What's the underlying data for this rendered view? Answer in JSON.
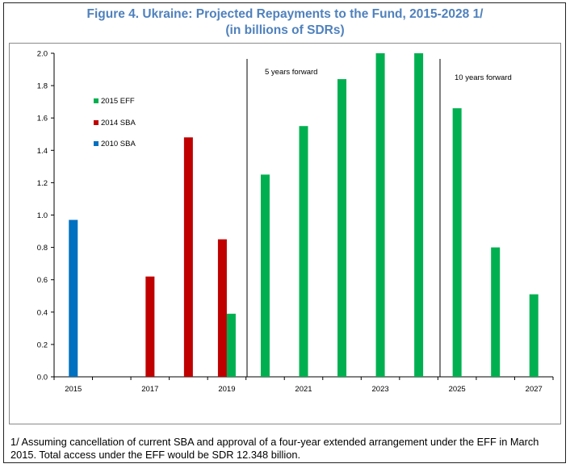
{
  "figure": {
    "title_line1": "Figure 4. Ukraine: Projected Repayments to the Fund, 2015-2028 1/",
    "title_line2": "(in billions of SDRs)"
  },
  "footnote": "1/ Assuming cancellation of current SBA and approval of a four-year extended arrangement under the EFF in March 2015. Total access under the EFF would be SDR 12.348 billion.",
  "colors": {
    "eff": "#00b050",
    "sba2014": "#c00000",
    "sba2010": "#0070c0"
  },
  "chart_data": {
    "type": "bar",
    "categories": [
      "2015",
      "2016",
      "2017",
      "2018",
      "2019",
      "2020",
      "2021",
      "2022",
      "2023",
      "2024",
      "2025",
      "2026",
      "2027"
    ],
    "x_tick_labels": [
      "2015",
      "2017",
      "2019",
      "2021",
      "2023",
      "2025",
      "2027"
    ],
    "ylim": [
      0,
      2.0
    ],
    "y_ticks": [
      "0.0",
      "0.2",
      "0.4",
      "0.6",
      "0.8",
      "1.0",
      "1.2",
      "1.4",
      "1.6",
      "1.8",
      "2.0"
    ],
    "series": [
      {
        "name": "2015 EFF",
        "values": [
          0,
          0,
          0,
          0,
          0.39,
          1.25,
          1.55,
          1.84,
          2.0,
          2.0,
          1.66,
          0.8,
          0.51
        ]
      },
      {
        "name": "2014 SBA",
        "values": [
          0,
          0,
          0.62,
          1.48,
          0.85,
          0,
          0,
          0,
          0,
          0,
          0,
          0,
          0
        ]
      },
      {
        "name": "2010 SBA",
        "values": [
          0.97,
          0,
          0,
          0,
          0,
          0,
          0,
          0,
          0,
          0,
          0,
          0,
          0
        ]
      }
    ],
    "annotations": [
      "5 years forward",
      "10 years forward"
    ],
    "legend_placement": "left",
    "grid": false
  }
}
